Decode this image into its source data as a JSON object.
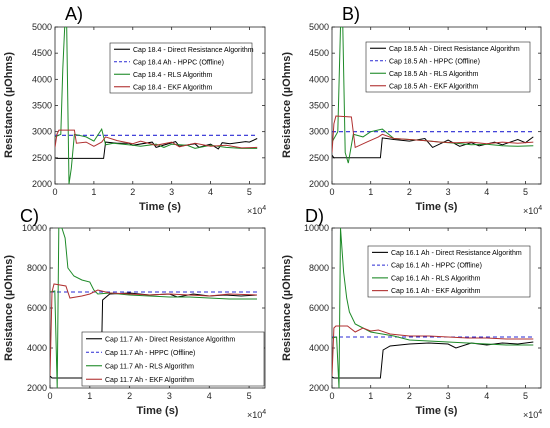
{
  "colors": {
    "direct": "#000000",
    "hppc": "#2a2ad4",
    "rls": "#1e8a28",
    "ekf": "#b03030"
  },
  "chart_data": [
    {
      "type": "line",
      "panel_label": "A)",
      "xlabel": "Time (s)",
      "ylabel": "Resistance (µOhms)",
      "x_exponent_label": "×10^4",
      "xlim": [
        0,
        5.4
      ],
      "ylim": [
        2000,
        5000
      ],
      "xticks": [
        0,
        1,
        2,
        3,
        4,
        5
      ],
      "yticks": [
        2000,
        2500,
        3000,
        3500,
        4000,
        4500,
        5000
      ],
      "legend": "top-right",
      "series": [
        {
          "name": "Cap 18.4 - Direct Resistance Algorithm",
          "key": "direct",
          "x": [
            0,
            0.05,
            1.25,
            1.3,
            1.6,
            1.9,
            2.0,
            2.5,
            2.6,
            3.1,
            3.2,
            3.6,
            3.7,
            4.0,
            4.2,
            4.3,
            4.5,
            4.9,
            5.0,
            5.2
          ],
          "y": [
            2500,
            2490,
            2490,
            2800,
            2780,
            2780,
            2740,
            2800,
            2700,
            2810,
            2720,
            2770,
            2700,
            2760,
            2670,
            2790,
            2770,
            2810,
            2800,
            2870
          ]
        },
        {
          "name": "Cap 18.4 Ah - HPPC (Offline)",
          "key": "hppc",
          "dashed": true,
          "x": [
            0,
            5.2
          ],
          "y": [
            2930,
            2930
          ]
        },
        {
          "name": "Cap 18.4 - RLS Algorithm",
          "key": "rls",
          "x": [
            0,
            0.15,
            0.2,
            0.25,
            0.3,
            0.36,
            0.42,
            0.5,
            0.8,
            1.0,
            1.2,
            1.3,
            1.5,
            2.0,
            2.2,
            2.6,
            2.8,
            3.0,
            3.4,
            3.6,
            4.0,
            4.4,
            4.8,
            5.2
          ],
          "y": [
            2900,
            2950,
            4200,
            5000,
            5000,
            2000,
            2300,
            2950,
            2900,
            2820,
            3050,
            2750,
            2780,
            2740,
            2720,
            2760,
            2700,
            2760,
            2740,
            2680,
            2740,
            2700,
            2680,
            2680
          ]
        },
        {
          "name": "Cap 18.4 - EKF Algorithm",
          "key": "ekf",
          "x": [
            0,
            0.05,
            0.1,
            0.5,
            0.55,
            0.8,
            1.0,
            1.2,
            1.3,
            1.6,
            2.0,
            2.2,
            2.6,
            3.0,
            3.2,
            3.6,
            4.0,
            4.4,
            4.8,
            5.2
          ],
          "y": [
            2700,
            2950,
            3030,
            3030,
            2780,
            2800,
            2720,
            2800,
            2900,
            2830,
            2770,
            2820,
            2740,
            2800,
            2710,
            2780,
            2720,
            2740,
            2690,
            2700
          ]
        }
      ]
    },
    {
      "type": "line",
      "panel_label": "B)",
      "xlabel": "Time (s)",
      "ylabel": "Resistance (µOhms)",
      "x_exponent_label": "×10^4",
      "xlim": [
        0,
        5.4
      ],
      "ylim": [
        2000,
        5000
      ],
      "xticks": [
        0,
        1,
        2,
        3,
        4,
        5
      ],
      "yticks": [
        2000,
        2500,
        3000,
        3500,
        4000,
        4500,
        5000
      ],
      "legend": "top-right",
      "series": [
        {
          "name": "Cap 18.5 Ah - Direct Resistance Algorithm",
          "key": "direct",
          "x": [
            0,
            0.05,
            1.25,
            1.3,
            1.6,
            2.0,
            2.4,
            2.6,
            3.0,
            3.3,
            3.6,
            3.8,
            4.2,
            4.4,
            4.8,
            5.0,
            5.2
          ],
          "y": [
            2550,
            2500,
            2500,
            2880,
            2850,
            2820,
            2870,
            2700,
            2840,
            2720,
            2790,
            2730,
            2800,
            2750,
            2850,
            2790,
            2900
          ]
        },
        {
          "name": "Cap 18.5 Ah - HPPC (Offline)",
          "key": "hppc",
          "dashed": true,
          "x": [
            0,
            5.2
          ],
          "y": [
            3000,
            3000
          ]
        },
        {
          "name": "Cap 18.5 Ah - RLS Algorithm",
          "key": "rls",
          "x": [
            0,
            0.15,
            0.22,
            0.28,
            0.34,
            0.42,
            0.55,
            0.8,
            1.0,
            1.3,
            1.6,
            2.0,
            2.4,
            2.8,
            3.2,
            3.6,
            4.0,
            4.4,
            4.8,
            5.2
          ],
          "y": [
            2800,
            3000,
            5000,
            5000,
            2600,
            2400,
            2950,
            2900,
            3000,
            3050,
            2870,
            2850,
            2830,
            2800,
            2780,
            2750,
            2760,
            2730,
            2720,
            2730
          ]
        },
        {
          "name": "Cap 18.5 Ah - EKF Algorithm",
          "key": "ekf",
          "x": [
            0,
            0.05,
            0.1,
            0.5,
            0.6,
            0.9,
            1.2,
            1.3,
            1.6,
            2.0,
            2.4,
            2.8,
            3.2,
            3.6,
            4.0,
            4.4,
            4.8,
            5.2
          ],
          "y": [
            2600,
            3150,
            3300,
            3280,
            2700,
            2800,
            2900,
            2950,
            2870,
            2850,
            2830,
            2800,
            2790,
            2800,
            2770,
            2800,
            2780,
            2800
          ]
        }
      ]
    },
    {
      "type": "line",
      "panel_label": "C)",
      "xlabel": "Time (s)",
      "ylabel": "Resistance (µOhms)",
      "x_exponent_label": "×10^4",
      "xlim": [
        0,
        5.4
      ],
      "ylim": [
        2000,
        10000
      ],
      "xticks": [
        0,
        1,
        2,
        3,
        4,
        5
      ],
      "yticks": [
        2000,
        4000,
        6000,
        8000,
        10000
      ],
      "legend": "bottom-right",
      "series": [
        {
          "name": "Cap 11.7 Ah - Direct Resistance Algorithm",
          "key": "direct",
          "x": [
            0,
            0.05,
            1.28,
            1.32,
            1.5,
            2.0,
            2.5,
            3.0,
            3.2,
            3.6,
            4.0,
            4.4,
            4.8,
            5.2
          ],
          "y": [
            2600,
            2500,
            2500,
            6400,
            6700,
            6750,
            6650,
            6700,
            6550,
            6700,
            6600,
            6650,
            6600,
            6650
          ]
        },
        {
          "name": "Cap 11.7 Ah - HPPC (Offline)",
          "key": "hppc",
          "dashed": true,
          "x": [
            0,
            5.2
          ],
          "y": [
            6800,
            6800
          ]
        },
        {
          "name": "Cap 11.7 Ah - RLS Algorithm",
          "key": "rls",
          "x": [
            0,
            0.12,
            0.18,
            0.22,
            0.3,
            0.38,
            0.45,
            0.6,
            0.8,
            1.0,
            1.1,
            1.2,
            1.5,
            2.0,
            2.5,
            3.0,
            3.5,
            4.0,
            4.5,
            5.2
          ],
          "y": [
            6800,
            6850,
            2000,
            10000,
            10000,
            9500,
            8000,
            7600,
            7400,
            7300,
            6900,
            6700,
            6750,
            6650,
            6600,
            6550,
            6550,
            6500,
            6450,
            6450
          ]
        },
        {
          "name": "Cap 11.7 Ah - EKF Algorithm",
          "key": "ekf",
          "x": [
            0,
            0.05,
            0.1,
            0.4,
            0.5,
            0.8,
            1.0,
            1.2,
            1.5,
            2.0,
            2.5,
            3.0,
            3.5,
            4.0,
            4.5,
            5.2
          ],
          "y": [
            2600,
            6800,
            7200,
            7100,
            6500,
            6600,
            6700,
            6900,
            6750,
            6700,
            6650,
            6700,
            6650,
            6600,
            6700,
            6650
          ]
        }
      ]
    },
    {
      "type": "line",
      "panel_label": "D)",
      "xlabel": "Time (s)",
      "ylabel": "Resistance (µOhms)",
      "x_exponent_label": "×10^4",
      "xlim": [
        0,
        5.4
      ],
      "ylim": [
        2000,
        10000
      ],
      "xticks": [
        0,
        1,
        2,
        3,
        4,
        5
      ],
      "yticks": [
        2000,
        4000,
        6000,
        8000,
        10000
      ],
      "legend": "top-right",
      "series": [
        {
          "name": "Cap 16.1 Ah - Direct Resistance Algorithm",
          "key": "direct",
          "x": [
            0,
            0.05,
            1.25,
            1.32,
            1.5,
            2.0,
            2.5,
            3.0,
            3.2,
            3.6,
            4.0,
            4.4,
            4.8,
            5.2
          ],
          "y": [
            2550,
            2500,
            2500,
            3900,
            4100,
            4200,
            4250,
            4200,
            4000,
            4250,
            4150,
            4250,
            4200,
            4300
          ]
        },
        {
          "name": "Cap 16.1 Ah - HPPC (Offline)",
          "key": "hppc",
          "dashed": true,
          "x": [
            0,
            5.2
          ],
          "y": [
            4550,
            4550
          ]
        },
        {
          "name": "Cap 16.1 Ah - RLS Algorithm",
          "key": "rls",
          "x": [
            0,
            0.12,
            0.18,
            0.22,
            0.3,
            0.38,
            0.45,
            0.6,
            0.8,
            1.0,
            1.3,
            1.6,
            2.0,
            2.5,
            3.0,
            3.5,
            4.0,
            4.5,
            5.2
          ],
          "y": [
            4500,
            4550,
            2000,
            10000,
            7800,
            6500,
            5800,
            5200,
            5000,
            4800,
            4700,
            4600,
            4400,
            4350,
            4300,
            4250,
            4200,
            4150,
            4150
          ]
        },
        {
          "name": "Cap 16.1 Ah - EKF Algorithm",
          "key": "ekf",
          "x": [
            0,
            0.05,
            0.1,
            0.4,
            0.6,
            0.8,
            1.0,
            1.2,
            1.5,
            2.0,
            2.5,
            3.0,
            3.5,
            4.0,
            4.5,
            5.2
          ],
          "y": [
            2600,
            5000,
            5100,
            5100,
            4800,
            5000,
            4850,
            4900,
            4700,
            4600,
            4600,
            4550,
            4500,
            4500,
            4450,
            4450
          ]
        }
      ]
    }
  ]
}
